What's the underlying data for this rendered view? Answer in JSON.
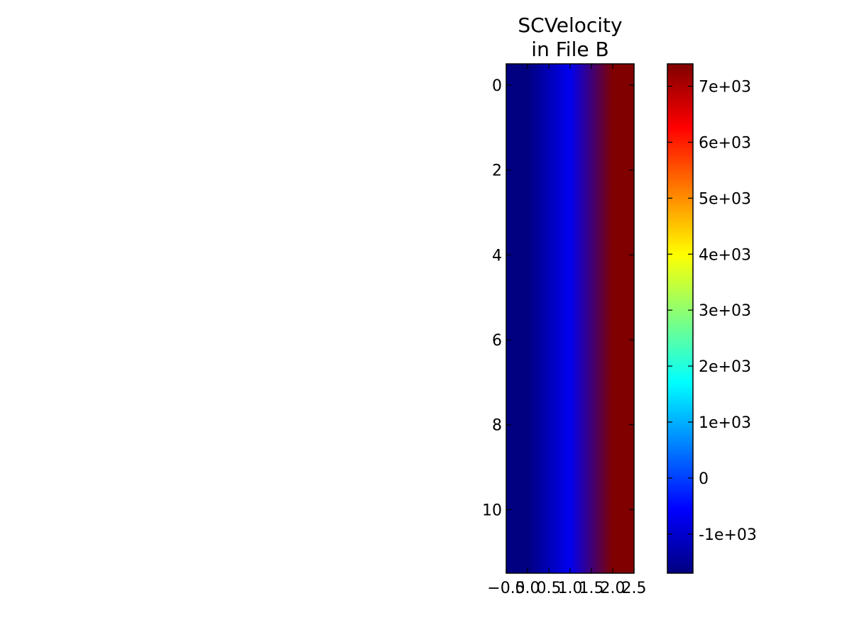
{
  "chart_data": {
    "type": "heatmap",
    "title_lines": [
      "SCVelocity",
      "in File B"
    ],
    "xlabel": "",
    "ylabel": "",
    "colormap": "jet",
    "x_tick_labels": [
      "−0.5",
      "0.0",
      "0.5",
      "1.0",
      "1.5",
      "2.0",
      "2.5"
    ],
    "x_tick_values": [
      -0.5,
      0.0,
      0.5,
      1.0,
      1.5,
      2.0,
      2.5
    ],
    "xlim": [
      -0.5,
      2.5
    ],
    "y_tick_labels": [
      "0",
      "2",
      "4",
      "6",
      "8",
      "10"
    ],
    "y_tick_values": [
      0,
      2,
      4,
      6,
      8,
      10
    ],
    "ylim": [
      11.5,
      -0.5
    ],
    "rows": 12,
    "columns": 3,
    "column_values": [
      -1700,
      -700,
      7400
    ],
    "interpolation": "bilinear",
    "colorbar": {
      "vmin": -1700,
      "vmax": 7400,
      "tick_labels": [
        "-1e+03",
        "0",
        "1e+03",
        "2e+03",
        "3e+03",
        "4e+03",
        "5e+03",
        "6e+03",
        "7e+03"
      ],
      "tick_values": [
        -1000,
        0,
        1000,
        2000,
        3000,
        4000,
        5000,
        6000,
        7000
      ]
    }
  }
}
